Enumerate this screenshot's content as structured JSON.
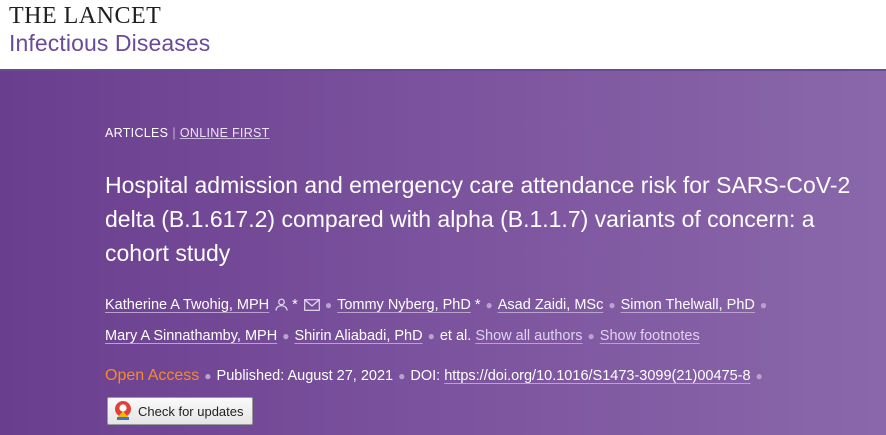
{
  "masthead": {
    "journal": "THE LANCET",
    "subtitle": "Infectious Diseases"
  },
  "section": {
    "type": "ARTICLES",
    "status": "ONLINE FIRST"
  },
  "article": {
    "title": "Hospital admission and emergency care attendance risk for SARS-CoV-2 delta (B.1.617.2) compared with alpha (B.1.1.7) variants of concern: a cohort study"
  },
  "authors": {
    "list": [
      "Katherine A Twohig, MPH",
      "Tommy Nyberg, PhD",
      "Asad Zaidi, MSc",
      "Simon Thelwall, PhD",
      "Mary A Sinnathamby, MPH",
      "Shirin Aliabadi, PhD"
    ],
    "star": "*",
    "et_al": "et al.",
    "show_all": "Show all authors",
    "show_footnotes": "Show footnotes"
  },
  "meta": {
    "open_access": "Open Access",
    "published_label": "Published:",
    "published_date": "August 27, 2021",
    "doi_label": "DOI:",
    "doi": "https://doi.org/10.1016/S1473-3099(21)00475-8"
  },
  "check_updates": {
    "label": "Check for updates"
  },
  "colors": {
    "brand_purple": "#6b4a93",
    "hero_start": "#6a3e8f",
    "hero_end": "#8a67aa",
    "open_access": "#f48a2a"
  }
}
